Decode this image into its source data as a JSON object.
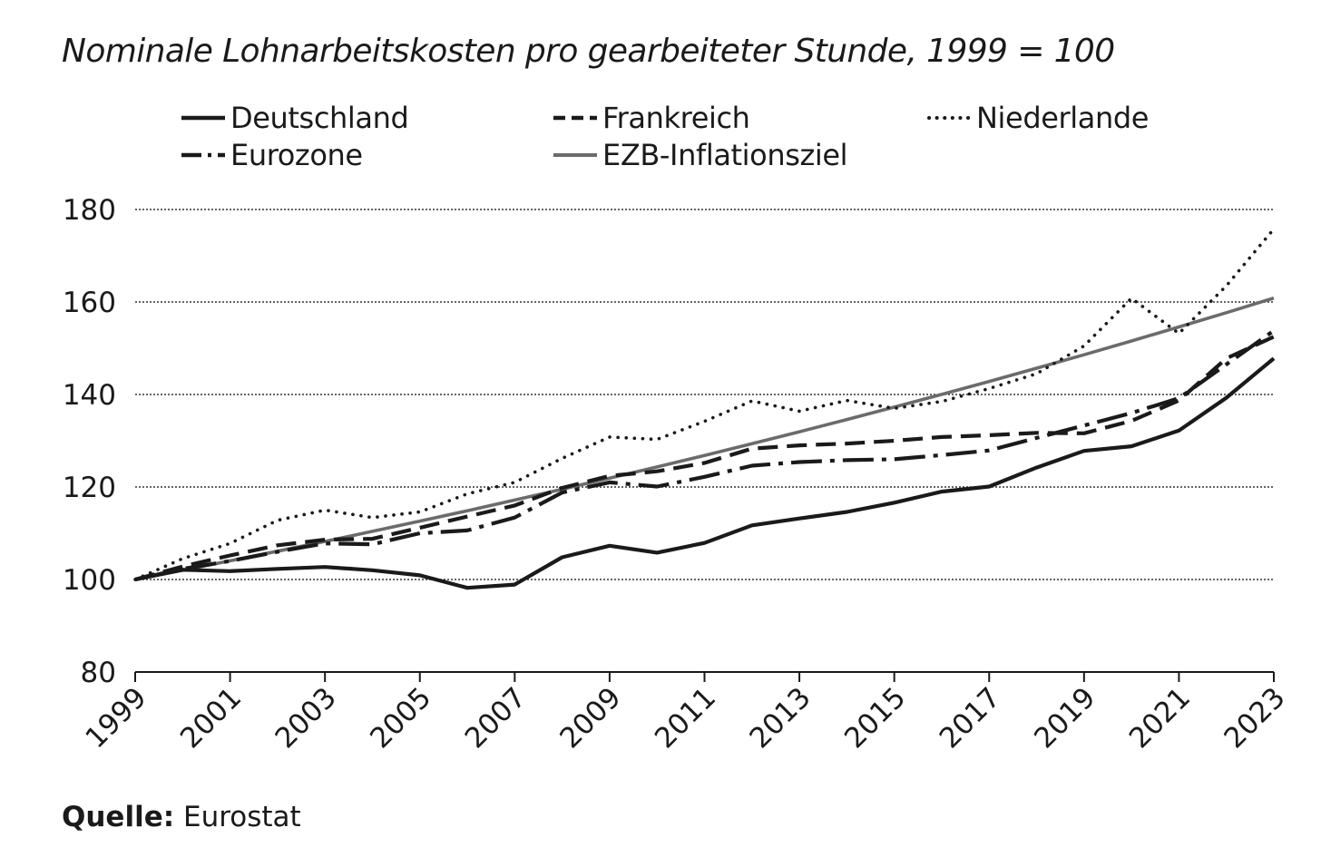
{
  "chart_data": {
    "type": "line",
    "title": "Nominale Lohnarbeitskosten pro gearbeiteter Stunde, 1999 = 100",
    "xlabel": "",
    "ylabel": "",
    "ylim": [
      80,
      180
    ],
    "yticks": [
      80,
      100,
      120,
      140,
      160,
      180
    ],
    "xticks": [
      "1999",
      "2001",
      "2003",
      "2005",
      "2007",
      "2009",
      "2011",
      "2013",
      "2015",
      "2017",
      "2019",
      "2021",
      "2023"
    ],
    "x": [
      1999,
      2000,
      2001,
      2002,
      2003,
      2004,
      2005,
      2006,
      2007,
      2008,
      2009,
      2010,
      2011,
      2012,
      2013,
      2014,
      2015,
      2016,
      2017,
      2018,
      2019,
      2020,
      2021,
      2022,
      2023
    ],
    "grid": "horizontal dotted",
    "legend_position": "top",
    "series": [
      {
        "name": "Deutschland",
        "style": "solid",
        "color": "#1a1a1a",
        "values": [
          100,
          102.1,
          101.8,
          102.3,
          102.7,
          102.0,
          100.9,
          98.2,
          98.9,
          104.8,
          107.3,
          105.8,
          107.9,
          111.7,
          113.2,
          114.6,
          116.6,
          119.0,
          120.1,
          124.2,
          127.8,
          128.8,
          132.2,
          139.3,
          147.8
        ]
      },
      {
        "name": "Frankreich",
        "style": "dashed",
        "color": "#1a1a1a",
        "values": [
          100,
          102.8,
          105.2,
          107.4,
          108.6,
          108.8,
          111.2,
          113.6,
          116.0,
          119.8,
          122.4,
          123.4,
          125.2,
          128.3,
          129.0,
          129.4,
          130.0,
          130.8,
          131.2,
          131.7,
          131.6,
          134.3,
          138.7,
          147.8,
          152.5
        ]
      },
      {
        "name": "Niederlande",
        "style": "dotted",
        "color": "#1a1a1a",
        "values": [
          100,
          104.5,
          107.8,
          112.8,
          115.0,
          113.4,
          114.6,
          118.5,
          121.0,
          126.2,
          130.8,
          130.3,
          134.2,
          138.6,
          136.4,
          138.7,
          137.0,
          138.5,
          141.3,
          144.5,
          150.5,
          160.8,
          153.2,
          163.5,
          175.8
        ]
      },
      {
        "name": "Eurozone",
        "style": "dash-dot",
        "color": "#1a1a1a",
        "values": [
          100,
          102.3,
          104.0,
          106.0,
          107.8,
          107.6,
          110.0,
          110.6,
          113.4,
          118.8,
          121.0,
          120.1,
          122.2,
          124.6,
          125.4,
          125.8,
          126.0,
          126.9,
          127.9,
          130.6,
          133.3,
          136.0,
          139.2,
          146.5,
          153.8
        ]
      },
      {
        "name": "EZB-Inflationsziel",
        "style": "solid",
        "color": "#6b6b6b",
        "values": [
          100,
          102.0,
          104.04,
          106.12,
          108.24,
          110.41,
          112.62,
          114.87,
          117.17,
          119.51,
          121.9,
          124.34,
          126.82,
          129.36,
          131.95,
          134.59,
          137.28,
          140.02,
          142.82,
          145.68,
          148.59,
          151.57,
          154.6,
          157.69,
          160.84
        ]
      }
    ]
  },
  "legend": {
    "items": [
      "Deutschland",
      "Frankreich",
      "Niederlande",
      "Eurozone",
      "EZB-Inflationsziel"
    ]
  },
  "source": {
    "label": "Quelle:",
    "text": "Eurostat"
  }
}
